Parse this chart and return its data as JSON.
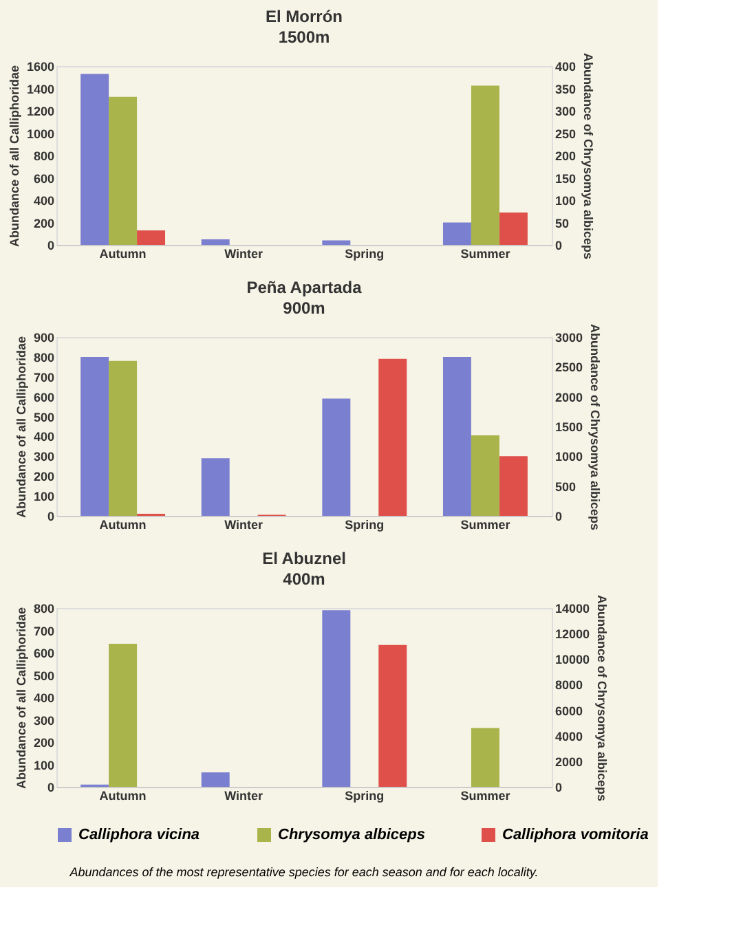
{
  "chart_data": [
    {
      "type": "bar",
      "title": "El Morrón",
      "subtitle": "1500m",
      "categories": [
        "Autumn",
        "Winter",
        "Spring",
        "Summer"
      ],
      "ylabel": "Abundance of all Calliphoridae",
      "y2label": "Abundance of Chrysomya albiceps",
      "ylim": [
        0,
        1600
      ],
      "yticks": [
        0,
        200,
        400,
        600,
        800,
        1000,
        1200,
        1400,
        1600
      ],
      "y2lim": [
        0,
        400
      ],
      "y2ticks": [
        0,
        50,
        100,
        150,
        200,
        250,
        300,
        350,
        400
      ],
      "legend": false,
      "series": [
        {
          "color": "#7b7fd0",
          "values": [
            1530,
            50,
            40,
            200
          ]
        },
        {
          "color": "#a9b44a",
          "axis": "y2",
          "values": [
            331,
            0,
            0,
            356
          ]
        },
        {
          "color": "#e0504a",
          "values": [
            130,
            0,
            0,
            290
          ]
        }
      ]
    },
    {
      "type": "bar",
      "title": "Peña Apartada",
      "subtitle": "900m",
      "categories": [
        "Autumn",
        "Winter",
        "Spring",
        "Summer"
      ],
      "ylabel": "Abundance of all Calliphoridae",
      "y2label": "Abundance of Chrysomya albiceps",
      "ylim": [
        0,
        900
      ],
      "yticks": [
        0,
        100,
        200,
        300,
        400,
        500,
        600,
        700,
        800,
        900
      ],
      "y2lim": [
        0,
        3000
      ],
      "y2ticks": [
        0,
        500,
        1000,
        1500,
        2000,
        2500,
        3000
      ],
      "legend": false,
      "series": [
        {
          "color": "#7b7fd0",
          "values": [
            800,
            290,
            590,
            800
          ]
        },
        {
          "color": "#a9b44a",
          "axis": "y2",
          "values": [
            2600,
            0,
            0,
            1350
          ]
        },
        {
          "color": "#e0504a",
          "values": [
            10,
            5,
            790,
            300
          ]
        }
      ]
    },
    {
      "type": "bar",
      "title": "El Abuznel",
      "subtitle": "400m",
      "categories": [
        "Autumn",
        "Winter",
        "Spring",
        "Summer"
      ],
      "ylabel": "Abundance of all Calliphoridae",
      "y2label": "Abundance of Chrysomya albiceps",
      "ylim": [
        0,
        800
      ],
      "yticks": [
        0,
        100,
        200,
        300,
        400,
        500,
        600,
        700,
        800
      ],
      "y2lim": [
        0,
        14000
      ],
      "y2ticks": [
        0,
        2000,
        4000,
        6000,
        8000,
        10000,
        12000,
        14000
      ],
      "legend": "bottom",
      "annotations": [
        "Abundances of the most representative species for each season and for each locality."
      ],
      "series": [
        {
          "name": "Calliphora vicina",
          "color": "#7b7fd0",
          "values": [
            10,
            65,
            790,
            0
          ]
        },
        {
          "name": "Chrysomya albiceps",
          "color": "#a9b44a",
          "axis": "y2",
          "values": [
            11200,
            0,
            0,
            4600
          ]
        },
        {
          "name": "Calliphora vomitoria",
          "color": "#e0504a",
          "values": [
            0,
            0,
            635,
            0
          ]
        }
      ]
    }
  ]
}
